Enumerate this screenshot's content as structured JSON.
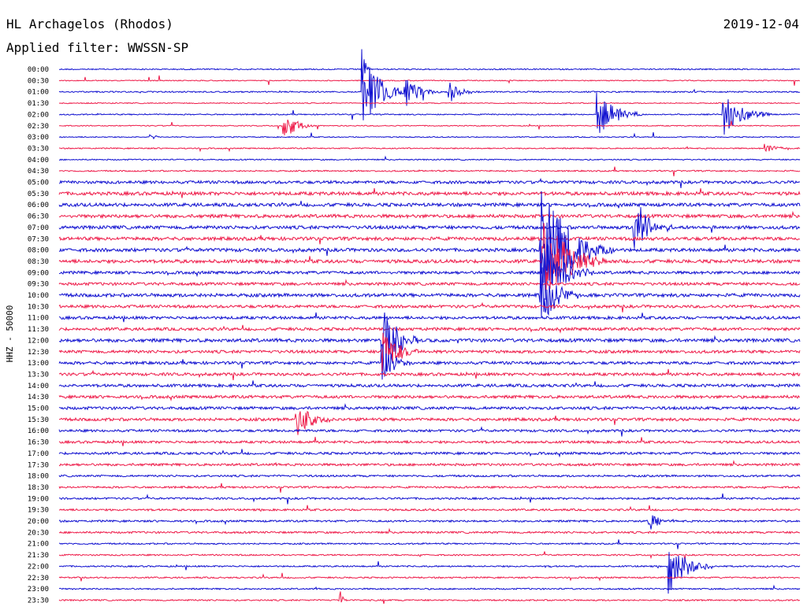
{
  "header": {
    "station": "HL Archagelos (Rhodos)",
    "date": "2019-12-04",
    "filter_label": "Applied filter: WWSSN-SP"
  },
  "axis": {
    "channel_label": "HHZ - 50000"
  },
  "colors": {
    "even_trace": "#1010d0",
    "odd_trace": "#ee1c4a",
    "text": "#000000",
    "background": "#ffffff"
  },
  "chart_data": {
    "type": "line",
    "title": "HL Archagelos (Rhodos)",
    "subtitle": "Applied filter: WWSSN-SP",
    "date": "2019-12-04",
    "ylabel": "HHZ - 50000",
    "xlabel": "",
    "row_minutes": 30,
    "x_range_minutes": [
      0,
      30
    ],
    "grid": false,
    "legend": "none",
    "rows": [
      "00:00",
      "00:30",
      "01:00",
      "01:30",
      "02:00",
      "02:30",
      "03:00",
      "03:30",
      "04:00",
      "04:30",
      "05:00",
      "05:30",
      "06:00",
      "06:30",
      "07:00",
      "07:30",
      "08:00",
      "08:30",
      "09:00",
      "09:30",
      "10:00",
      "10:30",
      "11:00",
      "11:30",
      "12:00",
      "12:30",
      "13:00",
      "13:30",
      "14:00",
      "14:30",
      "15:00",
      "15:30",
      "16:00",
      "16:30",
      "17:00",
      "17:30",
      "18:00",
      "18:30",
      "19:00",
      "19:30",
      "20:00",
      "20:30",
      "21:00",
      "21:30",
      "22:00",
      "22:30",
      "23:00",
      "23:30"
    ],
    "noise_level": [
      0.12,
      0.1,
      0.14,
      0.1,
      0.12,
      0.1,
      0.1,
      0.12,
      0.12,
      0.14,
      0.3,
      0.35,
      0.35,
      0.35,
      0.35,
      0.35,
      0.35,
      0.35,
      0.3,
      0.3,
      0.35,
      0.3,
      0.3,
      0.3,
      0.35,
      0.3,
      0.3,
      0.3,
      0.3,
      0.3,
      0.3,
      0.3,
      0.25,
      0.25,
      0.25,
      0.25,
      0.2,
      0.2,
      0.2,
      0.2,
      0.2,
      0.2,
      0.15,
      0.15,
      0.15,
      0.15,
      0.15,
      0.15
    ],
    "events": [
      {
        "row": "00:00",
        "minute": 12.3,
        "amp": 25,
        "dur": 0.3
      },
      {
        "row": "01:00",
        "minute": 12.3,
        "amp": 55,
        "dur": 1.8
      },
      {
        "row": "01:00",
        "minute": 14.0,
        "amp": 20,
        "dur": 1.5
      },
      {
        "row": "01:00",
        "minute": 15.8,
        "amp": 14,
        "dur": 1.2
      },
      {
        "row": "02:00",
        "minute": 21.8,
        "amp": 30,
        "dur": 1.8
      },
      {
        "row": "02:00",
        "minute": 26.9,
        "amp": 28,
        "dur": 2.0
      },
      {
        "row": "02:30",
        "minute": 9.1,
        "amp": 22,
        "dur": 1.2
      },
      {
        "row": "03:00",
        "minute": 3.7,
        "amp": 8,
        "dur": 0.4
      },
      {
        "row": "03:30",
        "minute": 28.6,
        "amp": 6,
        "dur": 1.5
      },
      {
        "row": "07:00",
        "minute": 23.3,
        "amp": 45,
        "dur": 1.5
      },
      {
        "row": "08:00",
        "minute": 19.5,
        "amp": 85,
        "dur": 3.0
      },
      {
        "row": "08:30",
        "minute": 19.6,
        "amp": 60,
        "dur": 2.5
      },
      {
        "row": "09:00",
        "minute": 19.6,
        "amp": 50,
        "dur": 2.0
      },
      {
        "row": "10:00",
        "minute": 19.5,
        "amp": 45,
        "dur": 1.5
      },
      {
        "row": "12:00",
        "minute": 13.1,
        "amp": 55,
        "dur": 1.5
      },
      {
        "row": "12:30",
        "minute": 13.1,
        "amp": 35,
        "dur": 1.5
      },
      {
        "row": "13:00",
        "minute": 13.1,
        "amp": 25,
        "dur": 1.2
      },
      {
        "row": "15:30",
        "minute": 9.6,
        "amp": 25,
        "dur": 1.5
      },
      {
        "row": "20:00",
        "minute": 23.9,
        "amp": 15,
        "dur": 0.8
      },
      {
        "row": "22:00",
        "minute": 24.7,
        "amp": 35,
        "dur": 1.8
      },
      {
        "row": "23:30",
        "minute": 11.4,
        "amp": 14,
        "dur": 0.3
      }
    ]
  }
}
